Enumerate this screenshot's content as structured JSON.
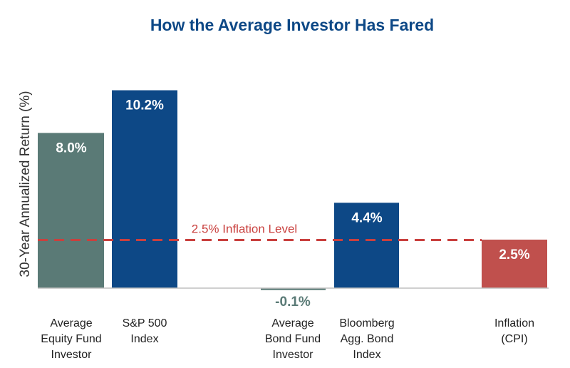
{
  "chart_data": {
    "type": "bar",
    "title": "How the Average Investor Has Fared",
    "ylabel": "30-Year Annualized Return (%)",
    "xlabel": "",
    "ylim": [
      -0.4,
      11
    ],
    "grid": false,
    "categories": [
      [
        "Average",
        "Equity Fund",
        "Investor"
      ],
      [
        "S&P 500",
        "Index"
      ],
      [
        "Average",
        "Bond Fund",
        "Investor"
      ],
      [
        "Bloomberg",
        "Agg. Bond",
        "Index"
      ],
      [
        "Inflation",
        "(CPI)"
      ]
    ],
    "values": [
      8.0,
      10.2,
      -0.1,
      4.4,
      2.5
    ],
    "value_labels": [
      "8.0%",
      "10.2%",
      "-0.1%",
      "4.4%",
      "2.5%"
    ],
    "colors": [
      "#5a7a76",
      "#0d4886",
      "#5a7a76",
      "#0d4886",
      "#c0504d"
    ],
    "reference_line": {
      "value": 2.5,
      "label": "2.5% Inflation Level",
      "color": "#c9403e"
    }
  }
}
